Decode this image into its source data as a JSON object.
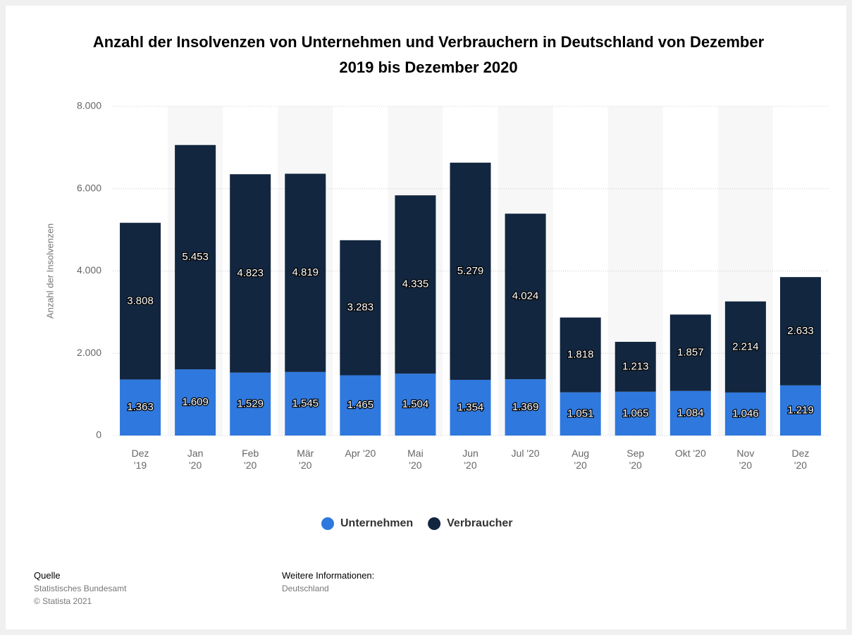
{
  "chart_data": {
    "type": "stacked_bar",
    "title": "Anzahl der Insolvenzen von Unternehmen und Verbrauchern in Deutschland von Dezember 2019 bis Dezember 2020",
    "y_label": "Anzahl der Insolvenzen",
    "categories": [
      "Dez '19",
      "Jan '20",
      "Feb '20",
      "Mär '20",
      "Apr '20",
      "Mai '20",
      "Jun '20",
      "Jul '20",
      "Aug '20",
      "Sep '20",
      "Okt '20",
      "Nov '20",
      "Dez '20"
    ],
    "series": [
      {
        "name": "Unternehmen",
        "color": "#2f78de",
        "values": [
          1363,
          1609,
          1529,
          1545,
          1465,
          1504,
          1354,
          1369,
          1051,
          1065,
          1084,
          1046,
          1219
        ],
        "value_labels": [
          "1.363",
          "1.609",
          "1.529",
          "1.545",
          "1.465",
          "1.504",
          "1.354",
          "1.369",
          "1.051",
          "1.065",
          "1.084",
          "1.046",
          "1.219"
        ]
      },
      {
        "name": "Verbraucher",
        "color": "#12263f",
        "values": [
          3808,
          5453,
          4823,
          4819,
          3283,
          4335,
          5279,
          4024,
          1818,
          1213,
          1857,
          2214,
          2633
        ],
        "value_labels": [
          "3.808",
          "5.453",
          "4.823",
          "4.819",
          "3.283",
          "4.335",
          "5.279",
          "4.024",
          "1.818",
          "1.213",
          "1.857",
          "2.214",
          "2.633"
        ]
      }
    ],
    "ylim": [
      0,
      8000
    ],
    "yticks": [
      0,
      {
        "value": 2000,
        "label": "2.000"
      },
      {
        "value": 4000,
        "label": "4.000"
      },
      {
        "value": 6000,
        "label": "6.000"
      },
      {
        "value": 8000,
        "label": "8.000"
      }
    ],
    "grid": true,
    "legend": "bottom"
  },
  "footer": {
    "source_title": "Quelle",
    "source": "Statistisches Bundesamt",
    "copyright": "© Statista 2021",
    "info_title": "Weitere Informationen:",
    "info": "Deutschland"
  }
}
